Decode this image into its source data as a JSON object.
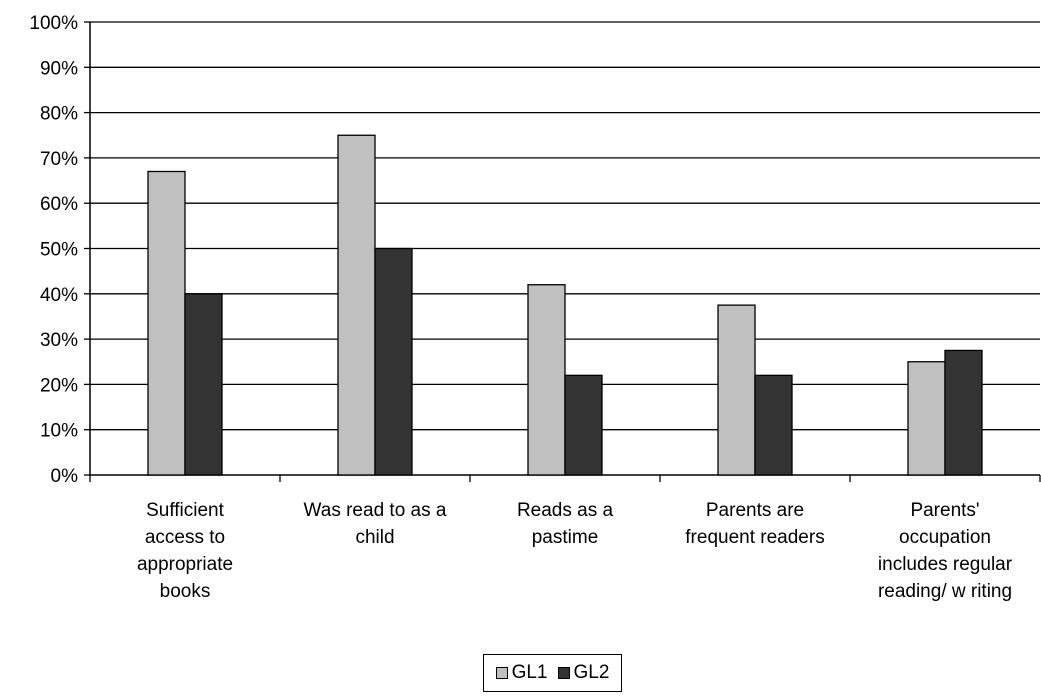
{
  "chart_data": {
    "type": "bar",
    "categories": [
      "Sufficient access to appropriate books",
      "Was read to as a child",
      "Reads as a pastime",
      "Parents are frequent readers",
      "Parents' occupation includes regular reading/ w riting"
    ],
    "category_lines": [
      [
        "Sufficient",
        "access to",
        "appropriate",
        "books"
      ],
      [
        "Was read to as a",
        "child"
      ],
      [
        "Reads as a",
        "pastime"
      ],
      [
        "Parents are",
        "frequent readers"
      ],
      [
        "Parents'",
        "occupation",
        "includes regular",
        "reading/ w riting"
      ]
    ],
    "series": [
      {
        "name": "GL1",
        "values": [
          67,
          75,
          42,
          37.5,
          25
        ],
        "color": "#c0c0c0"
      },
      {
        "name": "GL2",
        "values": [
          40,
          50,
          22,
          22,
          27.5
        ],
        "color": "#333333"
      }
    ],
    "yticks": [
      "0%",
      "10%",
      "20%",
      "30%",
      "40%",
      "50%",
      "60%",
      "70%",
      "80%",
      "90%",
      "100%"
    ],
    "ylim": [
      0,
      100
    ],
    "grid": true,
    "legend_position": "bottom"
  }
}
